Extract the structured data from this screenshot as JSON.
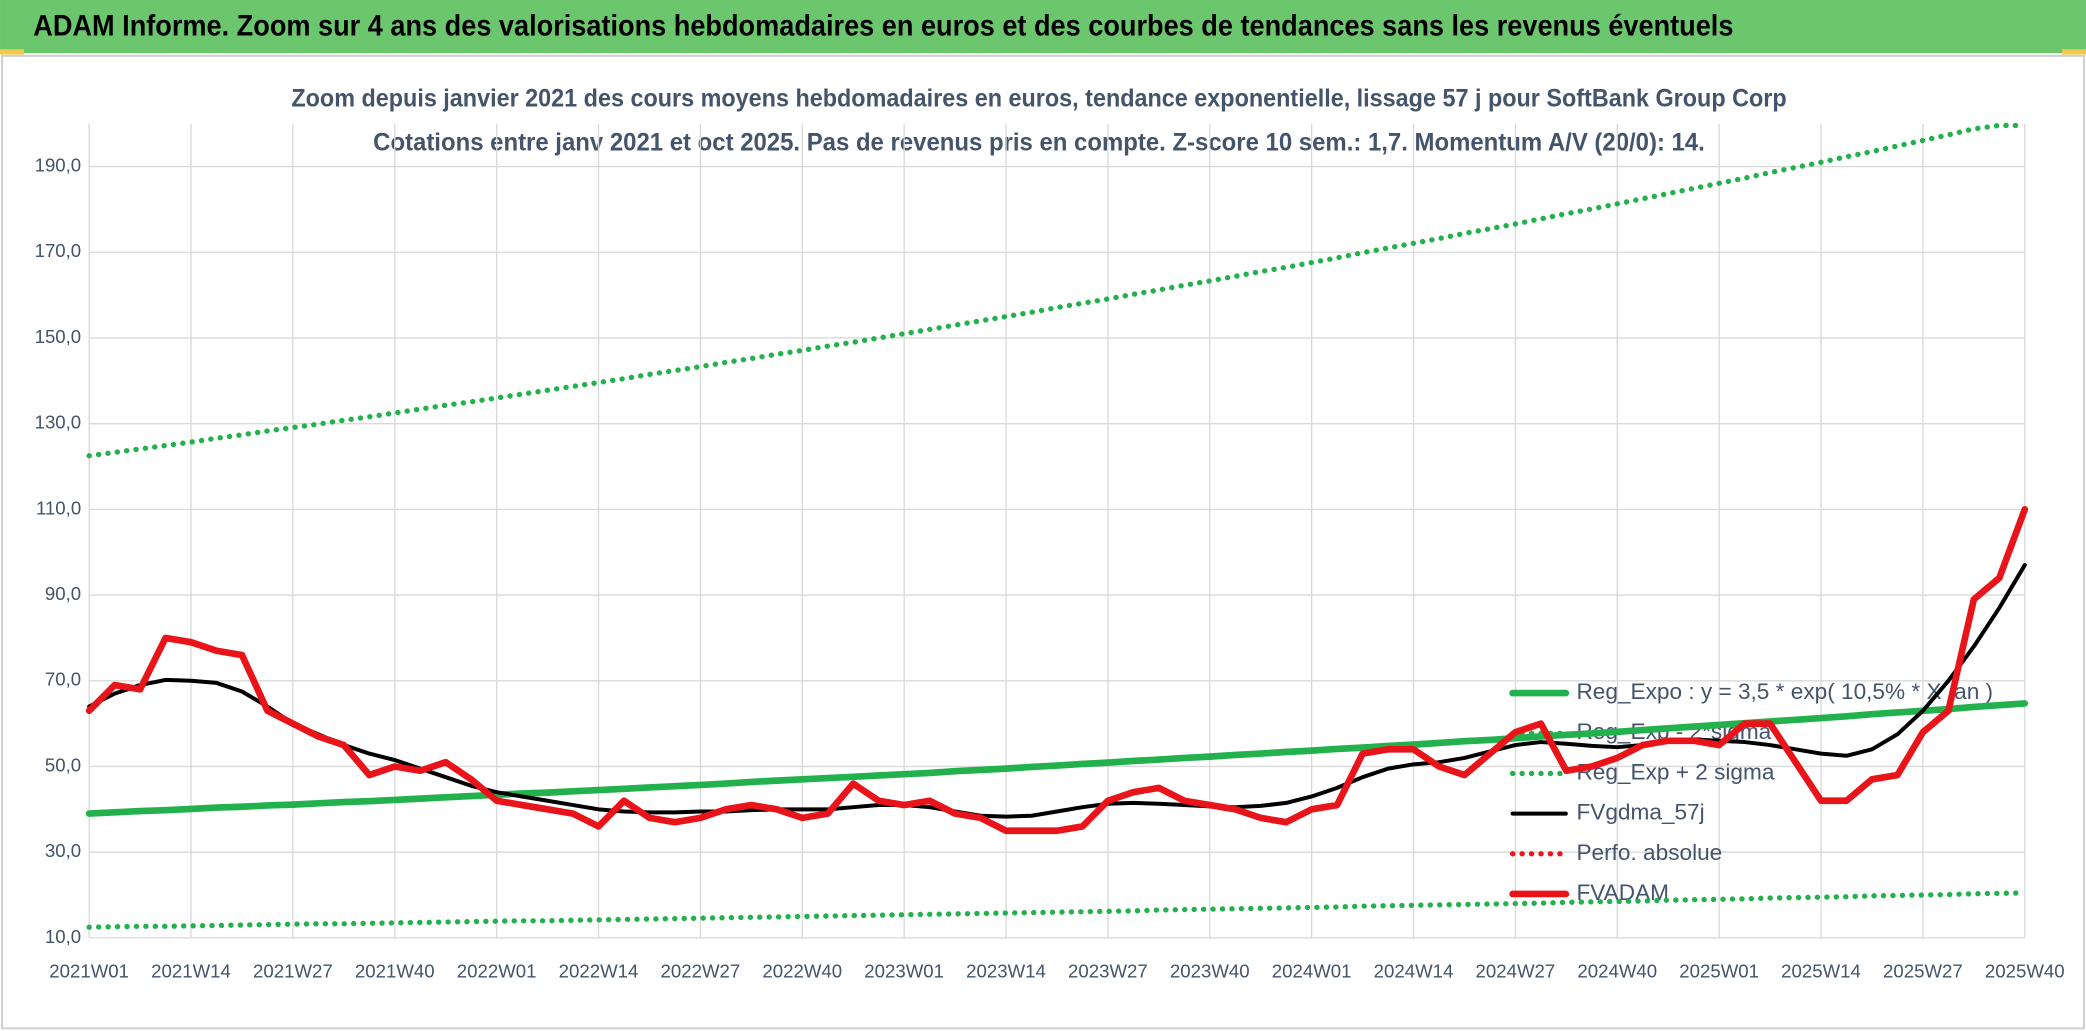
{
  "chart_data": {
    "type": "line",
    "title": "ADAM Informe. Zoom sur 4 ans des valorisations hebdomadaires en euros et des courbes de tendances sans les revenus éventuels",
    "subtitle": [
      "Zoom depuis janvier 2021 des cours moyens hebdomadaires en euros, tendance exponentielle, lissage 57 j pour SoftBank Group Corp",
      "Cotations entre janv 2021 et oct 2025. Pas de revenus pris en compte. Z-score 10 sem.: 1,7. Momentum A/V (20/0): 14."
    ],
    "categories": [
      "2021W01",
      null,
      null,
      null,
      "2021W14",
      null,
      null,
      null,
      "2021W27",
      null,
      null,
      null,
      "2021W40",
      null,
      null,
      null,
      "2022W01",
      null,
      null,
      null,
      "2022W14",
      null,
      null,
      null,
      "2022W27",
      null,
      null,
      null,
      "2022W40",
      null,
      null,
      null,
      "2023W01",
      null,
      null,
      null,
      "2023W14",
      null,
      null,
      null,
      "2023W27",
      null,
      null,
      null,
      "2023W40",
      null,
      null,
      null,
      "2024W01",
      null,
      null,
      null,
      "2024W14",
      null,
      null,
      null,
      "2024W27",
      null,
      null,
      null,
      "2024W40",
      null,
      null,
      null,
      "2025W01",
      null,
      null,
      null,
      "2025W14",
      null,
      null,
      null,
      "2025W27",
      null,
      null,
      null,
      "2025W40"
    ],
    "ylim": [
      10,
      200
    ],
    "yticks": [
      {
        "value": 10,
        "label": "10,0"
      },
      {
        "value": 30,
        "label": "30,0"
      },
      {
        "value": 50,
        "label": "50,0"
      },
      {
        "value": 70,
        "label": "70,0"
      },
      {
        "value": 90,
        "label": "90,0"
      },
      {
        "value": 110,
        "label": "110,0"
      },
      {
        "value": 130,
        "label": "130,0"
      },
      {
        "value": 150,
        "label": "150,0"
      },
      {
        "value": 170,
        "label": "170,0"
      },
      {
        "value": 190,
        "label": "190,0"
      }
    ],
    "grid": true,
    "legend": "lower right",
    "series": [
      {
        "name": "Reg_Expo : y = 3,5 * exp( 10,5% * X /an )",
        "color": "#22b14c",
        "style": "solid",
        "values": [
          39.0,
          39.3,
          39.6,
          39.8,
          40.1,
          40.4,
          40.6,
          40.9,
          41.1,
          41.4,
          41.7,
          41.9,
          42.2,
          42.5,
          42.8,
          43.1,
          43.4,
          43.7,
          43.9,
          44.2,
          44.5,
          44.8,
          45.1,
          45.4,
          45.7,
          46.0,
          46.4,
          46.7,
          47.0,
          47.3,
          47.6,
          47.9,
          48.2,
          48.5,
          48.9,
          49.2,
          49.5,
          49.9,
          50.2,
          50.6,
          50.9,
          51.3,
          51.6,
          52.0,
          52.3,
          52.7,
          53.0,
          53.4,
          53.7,
          54.1,
          54.4,
          54.8,
          55.1,
          55.5,
          55.9,
          56.2,
          56.6,
          57.0,
          57.4,
          57.7,
          58.1,
          58.5,
          58.9,
          59.3,
          59.7,
          60.1,
          60.5,
          60.9,
          61.3,
          61.7,
          62.2,
          62.6,
          63.0,
          63.4,
          63.9,
          64.3,
          64.7
        ]
      },
      {
        "name": "Reg_Exp - 2*sigma",
        "color": "#22b14c",
        "style": "dotted",
        "values": [
          12.5,
          12.6,
          12.7,
          12.7,
          12.8,
          12.9,
          13.0,
          13.1,
          13.2,
          13.3,
          13.3,
          13.4,
          13.5,
          13.6,
          13.7,
          13.8,
          13.9,
          14.0,
          14.0,
          14.1,
          14.2,
          14.3,
          14.4,
          14.5,
          14.6,
          14.7,
          14.8,
          14.9,
          15.0,
          15.1,
          15.2,
          15.3,
          15.4,
          15.5,
          15.6,
          15.7,
          15.8,
          15.9,
          16.0,
          16.1,
          16.2,
          16.3,
          16.5,
          16.6,
          16.7,
          16.8,
          16.9,
          17.0,
          17.1,
          17.2,
          17.4,
          17.5,
          17.6,
          17.7,
          17.8,
          17.9,
          18.0,
          18.1,
          18.3,
          18.4,
          18.5,
          18.6,
          18.8,
          18.9,
          19.0,
          19.1,
          19.3,
          19.4,
          19.5,
          19.6,
          19.8,
          19.9,
          20.0,
          20.1,
          20.3,
          20.4,
          20.5
        ]
      },
      {
        "name": "Reg_Exp + 2 sigma",
        "color": "#22b14c",
        "style": "dotted",
        "values": [
          122.5,
          123.3,
          124.1,
          124.9,
          125.7,
          126.6,
          127.4,
          128.3,
          129.1,
          129.9,
          130.8,
          131.6,
          132.5,
          133.4,
          134.3,
          135.1,
          136.0,
          136.9,
          137.8,
          138.7,
          139.6,
          140.5,
          141.5,
          142.4,
          143.3,
          144.3,
          145.2,
          146.2,
          147.1,
          148.1,
          149.0,
          150.0,
          151.0,
          152.0,
          153.0,
          154.0,
          155.0,
          156.0,
          157.1,
          158.1,
          159.1,
          160.2,
          161.2,
          162.3,
          163.3,
          164.4,
          165.5,
          166.5,
          167.6,
          168.7,
          169.9,
          171.0,
          172.1,
          173.2,
          174.4,
          175.5,
          176.6,
          177.8,
          179.0,
          180.1,
          181.3,
          182.5,
          183.7,
          184.9,
          186.1,
          187.3,
          188.6,
          189.8,
          191.0,
          192.3,
          193.5,
          194.8,
          196.1,
          197.4,
          198.8,
          199.6,
          199.6
        ]
      },
      {
        "name": "FVgdma_57j",
        "color": "#000000",
        "style": "solid",
        "values": [
          64,
          67,
          69,
          70.2,
          70,
          69.5,
          67.5,
          64,
          60,
          57.5,
          55,
          53,
          51.5,
          49.5,
          47.5,
          45.5,
          44,
          43,
          42,
          41,
          40,
          39.5,
          39.3,
          39.3,
          39.5,
          39.5,
          39.8,
          40,
          40,
          40,
          40.5,
          41,
          41,
          40.5,
          39.5,
          38.5,
          38.3,
          38.5,
          39.5,
          40.5,
          41.3,
          41.5,
          41.3,
          41,
          40.7,
          40.5,
          40.8,
          41.5,
          43,
          45,
          47.5,
          49.5,
          50.5,
          51,
          52,
          53.5,
          55,
          55.7,
          55.3,
          54.8,
          54.5,
          55,
          55.8,
          56.3,
          56,
          55.7,
          55,
          54,
          53,
          52.5,
          54,
          57.5,
          63,
          70,
          78,
          87,
          97
        ]
      },
      {
        "name": "Perfo. absolue",
        "color": "#e8141a",
        "style": "dotted",
        "values": [
          null,
          null,
          null,
          null,
          null,
          null,
          null,
          null,
          null,
          null,
          null,
          null,
          null,
          null,
          null,
          null,
          null,
          null,
          null,
          null,
          null,
          null,
          null,
          null,
          null,
          null,
          null,
          null,
          null,
          null,
          null,
          null,
          null,
          null,
          null,
          null,
          null,
          null,
          null,
          null,
          null,
          null,
          null,
          null,
          null,
          null,
          null,
          null,
          null,
          null,
          null,
          null,
          null,
          null,
          null,
          null,
          null,
          null,
          null,
          null,
          null,
          null,
          null,
          null,
          null,
          null,
          null,
          null,
          null,
          null,
          null,
          null,
          null,
          null,
          null,
          null,
          null
        ]
      },
      {
        "name": "FVADAM",
        "color": "#e8141a",
        "style": "solid",
        "values": [
          63,
          69,
          68,
          80,
          79,
          77,
          76,
          63,
          60,
          57,
          55,
          48,
          50,
          49,
          51,
          47,
          42,
          41,
          40,
          39,
          36,
          42,
          38,
          37,
          38,
          40,
          41,
          40,
          38,
          39,
          46,
          42,
          41,
          42,
          39,
          38,
          35,
          35,
          35,
          36,
          42,
          44,
          45,
          42,
          41,
          40,
          38,
          37,
          40,
          41,
          53,
          54,
          54,
          50,
          48,
          53,
          58,
          60,
          49,
          50,
          52,
          55,
          56,
          56,
          55,
          60,
          60,
          51,
          42,
          42,
          47,
          48,
          58,
          63,
          89,
          94,
          110
        ]
      }
    ]
  }
}
